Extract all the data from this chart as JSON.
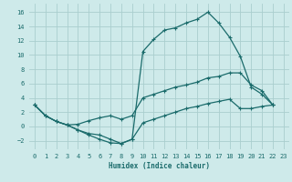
{
  "xlabel": "Humidex (Indice chaleur)",
  "bg_color": "#ceeaea",
  "grid_color": "#aacece",
  "line_color": "#1a6b6b",
  "xlim": [
    -0.5,
    23.5
  ],
  "ylim": [
    -3.2,
    17.2
  ],
  "xticks": [
    0,
    1,
    2,
    3,
    4,
    5,
    6,
    7,
    8,
    9,
    10,
    11,
    12,
    13,
    14,
    15,
    16,
    17,
    18,
    19,
    20,
    21,
    22,
    23
  ],
  "yticks": [
    -2,
    0,
    2,
    4,
    6,
    8,
    10,
    12,
    14,
    16
  ],
  "line1_x": [
    0,
    1,
    2,
    3,
    4,
    5,
    6,
    7,
    8,
    9,
    10,
    11,
    12,
    13,
    14,
    15,
    16,
    17,
    18,
    19,
    20,
    21,
    22
  ],
  "line1_y": [
    3.0,
    1.5,
    0.7,
    0.2,
    -0.5,
    -1.2,
    -1.8,
    -2.3,
    -2.4,
    -1.8,
    10.5,
    12.2,
    13.5,
    13.8,
    14.5,
    15.0,
    16.0,
    14.5,
    12.5,
    9.8,
    5.5,
    4.5,
    3.0
  ],
  "line2_x": [
    0,
    1,
    2,
    3,
    4,
    5,
    6,
    7,
    8,
    9,
    10,
    11,
    12,
    13,
    14,
    15,
    16,
    17,
    18,
    19,
    20,
    21,
    22
  ],
  "line2_y": [
    3.0,
    1.5,
    0.7,
    0.2,
    0.3,
    0.8,
    1.2,
    1.5,
    1.0,
    1.5,
    4.0,
    4.5,
    5.0,
    5.5,
    5.8,
    6.2,
    6.8,
    7.0,
    7.5,
    7.5,
    5.8,
    5.0,
    3.0
  ],
  "line3_x": [
    0,
    1,
    2,
    3,
    4,
    5,
    6,
    7,
    8,
    9,
    10,
    11,
    12,
    13,
    14,
    15,
    16,
    17,
    18,
    19,
    20,
    21,
    22
  ],
  "line3_y": [
    3.0,
    1.5,
    0.7,
    0.2,
    -0.5,
    -1.0,
    -1.2,
    -1.8,
    -2.4,
    -1.8,
    0.5,
    1.0,
    1.5,
    2.0,
    2.5,
    2.8,
    3.2,
    3.5,
    3.8,
    2.5,
    2.5,
    2.8,
    3.0
  ]
}
